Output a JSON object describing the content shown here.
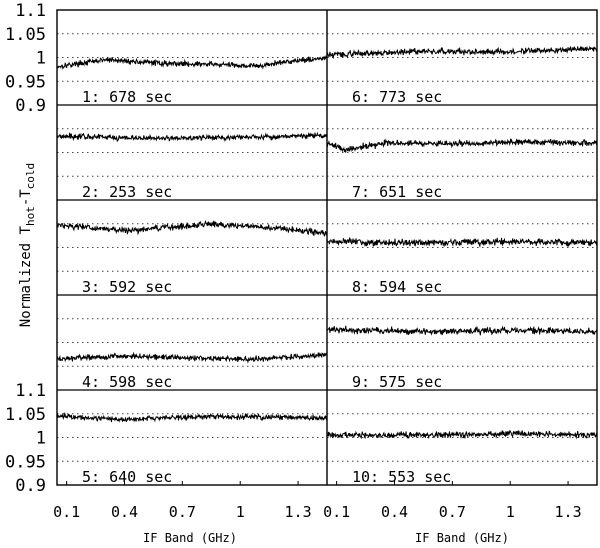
{
  "chart_data": {
    "type": "line",
    "ylabel": {
      "main": "Normalized T",
      "sub1": "hot",
      "dash": "-T",
      "sub2": "cold"
    },
    "xlabel": "IF Band (GHz)",
    "xlim": [
      0.05,
      1.45
    ],
    "ylim": [
      0.9,
      1.1
    ],
    "grid": {
      "y_dotted": [
        0.95,
        1.0,
        1.05
      ]
    },
    "y_ticks": [
      "1.1",
      "1.05",
      "1",
      "0.95",
      "0.9"
    ],
    "x_ticks": [
      "0.1",
      "0.4",
      "0.7",
      "1",
      "1.3"
    ],
    "panels": [
      {
        "label": "1:  678 sec",
        "col": 0,
        "row": 0,
        "anchors": [
          [
            0.05,
            0.981
          ],
          [
            0.3,
            0.995
          ],
          [
            0.6,
            0.988
          ],
          [
            0.9,
            0.985
          ],
          [
            1.1,
            0.982
          ],
          [
            1.25,
            0.992
          ],
          [
            1.45,
            0.999
          ]
        ],
        "noise": 0.004
      },
      {
        "label": "2:  253 sec",
        "col": 0,
        "row": 1,
        "anchors": [
          [
            0.05,
            1.035
          ],
          [
            0.5,
            1.03
          ],
          [
            1.0,
            1.032
          ],
          [
            1.45,
            1.036
          ]
        ],
        "noise": 0.004
      },
      {
        "label": "3:  592 sec",
        "col": 0,
        "row": 2,
        "anchors": [
          [
            0.05,
            1.048
          ],
          [
            0.4,
            1.035
          ],
          [
            0.85,
            1.05
          ],
          [
            1.2,
            1.04
          ],
          [
            1.45,
            1.03
          ]
        ],
        "noise": 0.0045
      },
      {
        "label": "4:  598 sec",
        "col": 0,
        "row": 3,
        "anchors": [
          [
            0.05,
            0.965
          ],
          [
            0.4,
            0.972
          ],
          [
            0.8,
            0.967
          ],
          [
            1.1,
            0.965
          ],
          [
            1.45,
            0.975
          ]
        ],
        "noise": 0.004
      },
      {
        "label": "5:  640 sec",
        "col": 0,
        "row": 4,
        "anchors": [
          [
            0.05,
            1.046
          ],
          [
            0.4,
            1.038
          ],
          [
            0.8,
            1.044
          ],
          [
            1.2,
            1.043
          ],
          [
            1.45,
            1.04
          ]
        ],
        "noise": 0.004
      },
      {
        "label": "6:  773 sec",
        "col": 1,
        "row": 0,
        "anchors": [
          [
            0.05,
            1.005
          ],
          [
            0.5,
            1.013
          ],
          [
            1.0,
            1.012
          ],
          [
            1.45,
            1.018
          ]
        ],
        "noise": 0.0045
      },
      {
        "label": "7:  651 sec",
        "col": 1,
        "row": 1,
        "anchors": [
          [
            0.05,
            1.02
          ],
          [
            0.15,
            1.005
          ],
          [
            0.35,
            1.02
          ],
          [
            0.7,
            1.018
          ],
          [
            1.0,
            1.022
          ],
          [
            1.45,
            1.02
          ]
        ],
        "noise": 0.0045
      },
      {
        "label": "8:  594 sec",
        "col": 1,
        "row": 2,
        "anchors": [
          [
            0.05,
            1.012
          ],
          [
            0.5,
            1.01
          ],
          [
            1.0,
            1.012
          ],
          [
            1.45,
            1.01
          ]
        ],
        "noise": 0.005
      },
      {
        "label": "9:  575 sec",
        "col": 1,
        "row": 3,
        "anchors": [
          [
            0.05,
            1.028
          ],
          [
            0.5,
            1.023
          ],
          [
            1.0,
            1.025
          ],
          [
            1.45,
            1.023
          ]
        ],
        "noise": 0.005
      },
      {
        "label": "10:  553 sec",
        "col": 1,
        "row": 4,
        "anchors": [
          [
            0.05,
            1.005
          ],
          [
            0.5,
            1.005
          ],
          [
            1.0,
            1.008
          ],
          [
            1.45,
            1.006
          ]
        ],
        "noise": 0.0045
      }
    ]
  }
}
